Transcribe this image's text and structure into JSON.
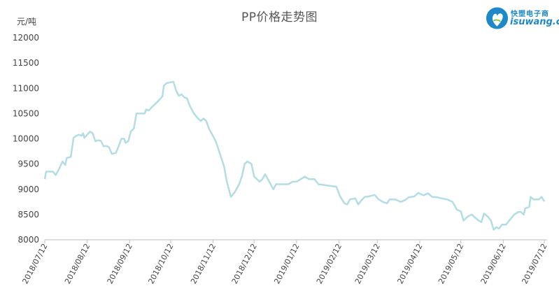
{
  "chart_data": {
    "type": "line",
    "title": "PP价格走势图",
    "ylabel": "元/吨",
    "xlabel": "",
    "ylim": [
      8000,
      12000
    ],
    "yticks": [
      8000,
      8500,
      9000,
      9500,
      10000,
      10500,
      11000,
      11500,
      12000
    ],
    "categories": [
      "2018/07/12",
      "2018/08/12",
      "2018/09/12",
      "2018/10/12",
      "2018/11/12",
      "2018/12/12",
      "2019/01/12",
      "2019/02/12",
      "2019/03/12",
      "2019/04/12",
      "2019/05/12",
      "2019/06/12",
      "2019/07/12"
    ],
    "grid": false,
    "legend": "none",
    "series": [
      {
        "color": "#b3dde3",
        "points": [
          [
            "2018-07-12",
            9200
          ],
          [
            "2018-07-13",
            9350
          ],
          [
            "2018-07-18",
            9350
          ],
          [
            "2018-07-20",
            9280
          ],
          [
            "2018-07-22",
            9380
          ],
          [
            "2018-07-25",
            9550
          ],
          [
            "2018-07-27",
            9480
          ],
          [
            "2018-07-28",
            9620
          ],
          [
            "2018-07-31",
            9640
          ],
          [
            "2018-08-02",
            10020
          ],
          [
            "2018-08-04",
            10060
          ],
          [
            "2018-08-06",
            10080
          ],
          [
            "2018-08-08",
            10060
          ],
          [
            "2018-08-09",
            10110
          ],
          [
            "2018-08-10",
            10020
          ],
          [
            "2018-08-12",
            10080
          ],
          [
            "2018-08-14",
            10140
          ],
          [
            "2018-08-16",
            10110
          ],
          [
            "2018-08-18",
            9950
          ],
          [
            "2018-08-20",
            9970
          ],
          [
            "2018-08-22",
            9960
          ],
          [
            "2018-08-24",
            9850
          ],
          [
            "2018-08-26",
            9860
          ],
          [
            "2018-08-28",
            9830
          ],
          [
            "2018-08-30",
            9700
          ],
          [
            "2018-09-02",
            9720
          ],
          [
            "2018-09-04",
            9850
          ],
          [
            "2018-09-06",
            10000
          ],
          [
            "2018-09-08",
            10000
          ],
          [
            "2018-09-09",
            9920
          ],
          [
            "2018-09-11",
            9950
          ],
          [
            "2018-09-13",
            10150
          ],
          [
            "2018-09-15",
            10200
          ],
          [
            "2018-09-17",
            10500
          ],
          [
            "2018-09-20",
            10500
          ],
          [
            "2018-09-23",
            10500
          ],
          [
            "2018-09-24",
            10580
          ],
          [
            "2018-09-26",
            10560
          ],
          [
            "2018-09-28",
            10620
          ],
          [
            "2018-10-03",
            10750
          ],
          [
            "2018-10-06",
            10840
          ],
          [
            "2018-10-07",
            11050
          ],
          [
            "2018-10-09",
            11100
          ],
          [
            "2018-10-12",
            11120
          ],
          [
            "2018-10-14",
            11130
          ],
          [
            "2018-10-16",
            10950
          ],
          [
            "2018-10-18",
            10850
          ],
          [
            "2018-10-20",
            10880
          ],
          [
            "2018-10-22",
            10820
          ],
          [
            "2018-10-24",
            10800
          ],
          [
            "2018-10-26",
            10650
          ],
          [
            "2018-10-29",
            10500
          ],
          [
            "2018-11-01",
            10400
          ],
          [
            "2018-11-03",
            10350
          ],
          [
            "2018-11-05",
            10400
          ],
          [
            "2018-11-07",
            10350
          ],
          [
            "2018-11-09",
            10200
          ],
          [
            "2018-11-12",
            10050
          ],
          [
            "2018-11-14",
            9950
          ],
          [
            "2018-11-17",
            9700
          ],
          [
            "2018-11-20",
            9450
          ],
          [
            "2018-11-22",
            9150
          ],
          [
            "2018-11-25",
            8850
          ],
          [
            "2018-11-28",
            8950
          ],
          [
            "2018-12-01",
            9100
          ],
          [
            "2018-12-03",
            9250
          ],
          [
            "2018-12-05",
            9500
          ],
          [
            "2018-12-07",
            9550
          ],
          [
            "2018-12-10",
            9500
          ],
          [
            "2018-12-12",
            9250
          ],
          [
            "2018-12-14",
            9200
          ],
          [
            "2018-12-16",
            9150
          ],
          [
            "2018-12-18",
            9200
          ],
          [
            "2018-12-20",
            9300
          ],
          [
            "2018-12-22",
            9200
          ],
          [
            "2018-12-24",
            9100
          ],
          [
            "2018-12-26",
            9000
          ],
          [
            "2018-12-28",
            9100
          ],
          [
            "2019-01-03",
            9100
          ],
          [
            "2019-01-06",
            9100
          ],
          [
            "2019-01-09",
            9150
          ],
          [
            "2019-01-12",
            9150
          ],
          [
            "2019-01-15",
            9200
          ],
          [
            "2019-01-18",
            9250
          ],
          [
            "2019-01-21",
            9200
          ],
          [
            "2019-01-25",
            9200
          ],
          [
            "2019-01-28",
            9100
          ],
          [
            "2019-02-10",
            9050
          ],
          [
            "2019-02-13",
            8850
          ],
          [
            "2019-02-16",
            8720
          ],
          [
            "2019-02-18",
            8700
          ],
          [
            "2019-02-20",
            8800
          ],
          [
            "2019-02-24",
            8820
          ],
          [
            "2019-02-26",
            8700
          ],
          [
            "2019-03-01",
            8800
          ],
          [
            "2019-03-03",
            8850
          ],
          [
            "2019-03-06",
            8860
          ],
          [
            "2019-03-10",
            8890
          ],
          [
            "2019-03-13",
            8800
          ],
          [
            "2019-03-16",
            8750
          ],
          [
            "2019-03-19",
            8720
          ],
          [
            "2019-03-21",
            8800
          ],
          [
            "2019-03-25",
            8800
          ],
          [
            "2019-03-29",
            8750
          ],
          [
            "2019-04-01",
            8780
          ],
          [
            "2019-04-04",
            8840
          ],
          [
            "2019-04-08",
            8860
          ],
          [
            "2019-04-11",
            8930
          ],
          [
            "2019-04-13",
            8900
          ],
          [
            "2019-04-15",
            8880
          ],
          [
            "2019-04-18",
            8920
          ],
          [
            "2019-04-21",
            8850
          ],
          [
            "2019-04-25",
            8840
          ],
          [
            "2019-04-28",
            8820
          ],
          [
            "2019-05-02",
            8800
          ],
          [
            "2019-05-06",
            8750
          ],
          [
            "2019-05-09",
            8600
          ],
          [
            "2019-05-12",
            8560
          ],
          [
            "2019-05-14",
            8380
          ],
          [
            "2019-05-17",
            8460
          ],
          [
            "2019-05-20",
            8500
          ],
          [
            "2019-05-22",
            8450
          ],
          [
            "2019-05-25",
            8380
          ],
          [
            "2019-05-27",
            8350
          ],
          [
            "2019-05-29",
            8520
          ],
          [
            "2019-06-01",
            8450
          ],
          [
            "2019-06-03",
            8380
          ],
          [
            "2019-06-05",
            8200
          ],
          [
            "2019-06-07",
            8250
          ],
          [
            "2019-06-09",
            8220
          ],
          [
            "2019-06-11",
            8300
          ],
          [
            "2019-06-14",
            8300
          ],
          [
            "2019-06-17",
            8400
          ],
          [
            "2019-06-20",
            8500
          ],
          [
            "2019-06-23",
            8550
          ],
          [
            "2019-06-25",
            8550
          ],
          [
            "2019-06-27",
            8500
          ],
          [
            "2019-06-28",
            8620
          ],
          [
            "2019-07-01",
            8650
          ],
          [
            "2019-07-02",
            8850
          ],
          [
            "2019-07-04",
            8800
          ],
          [
            "2019-07-08",
            8800
          ],
          [
            "2019-07-10",
            8850
          ],
          [
            "2019-07-12",
            8760
          ]
        ]
      }
    ]
  },
  "logo": {
    "text_cn": "快塑电子商",
    "text_en": "isuwang.co"
  }
}
